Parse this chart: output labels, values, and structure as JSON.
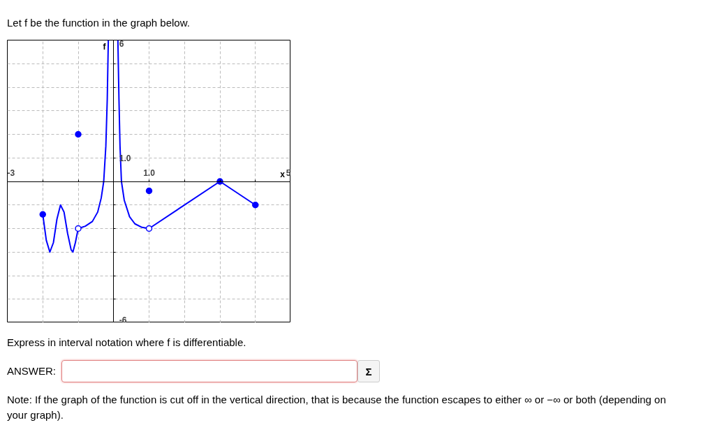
{
  "chart_data": {
    "type": "line",
    "title": "Let f be the function in the graph below.",
    "xlabel": "x",
    "ylabel": "f",
    "annotations": [
      "Express in interval notation where f is differentiable.",
      "ANSWER:",
      "Σ",
      "Note: If the graph of the function is cut off in the vertical direction, that is because the function escapes to either ∞ or −∞ or both (depending on your graph)."
    ],
    "xlim": [
      -3,
      5
    ],
    "ylim": [
      -6,
      6
    ],
    "xticks": [
      -3,
      {
        "value": -2,
        "label": null
      },
      {
        "value": -1,
        "label": null
      },
      {
        "value": 0,
        "label": null
      },
      {
        "value": 1,
        "label": "1.0"
      },
      {
        "value": 2,
        "label": null
      },
      {
        "value": 3,
        "label": null
      },
      {
        "value": 4,
        "label": null
      },
      5
    ],
    "yticks": [
      -6,
      {
        "value": -5,
        "label": null
      },
      {
        "value": -4,
        "label": null
      },
      {
        "value": -3,
        "label": null
      },
      {
        "value": -2,
        "label": null
      },
      {
        "value": -1,
        "label": null
      },
      {
        "value": 0,
        "label": null
      },
      {
        "value": 1,
        "label": "1.0"
      },
      {
        "value": 2,
        "label": null
      },
      {
        "value": 3,
        "label": null
      },
      {
        "value": 4,
        "label": null
      },
      {
        "value": 5,
        "label": null
      },
      6
    ],
    "grid": true,
    "series": [
      {
        "color": "#0000ff",
        "x": [
          -2,
          -1.9,
          -1.8,
          -1.7,
          -1.6,
          -1.5,
          -1.4,
          -1.3,
          -1.2,
          -1.15,
          -1.08,
          -1,
          -0.8,
          -0.6,
          -0.45,
          -0.35,
          -0.28,
          -0.22,
          -0.18,
          -0.15,
          0,
          0.12,
          0.15,
          0.18,
          0.22,
          0.3,
          0.45,
          0.6,
          0.8,
          1,
          3,
          4
        ],
        "values": [
          -1.4,
          -2.5,
          -3,
          -2.6,
          -1.6,
          -1,
          -1.3,
          -2.2,
          -2.9,
          -3,
          -2.6,
          -2,
          -1.9,
          -1.7,
          -1.3,
          -0.7,
          0,
          1.5,
          3.5,
          6,
          null,
          6,
          3.5,
          1.5,
          0,
          -0.8,
          -1.5,
          -1.8,
          -1.95,
          -2,
          0,
          -1
        ]
      },
      {
        "type": "scatter",
        "marker": "circle",
        "color": "#0000ff",
        "x": [
          -2,
          -1,
          1,
          3,
          4
        ],
        "values": [
          -1.4,
          2,
          -0.4,
          0,
          -1
        ]
      },
      {
        "type": "scatter",
        "marker": "circle",
        "color": "#ffffff",
        "x": [
          -1,
          1
        ],
        "values": [
          -2,
          -2
        ]
      }
    ]
  }
}
